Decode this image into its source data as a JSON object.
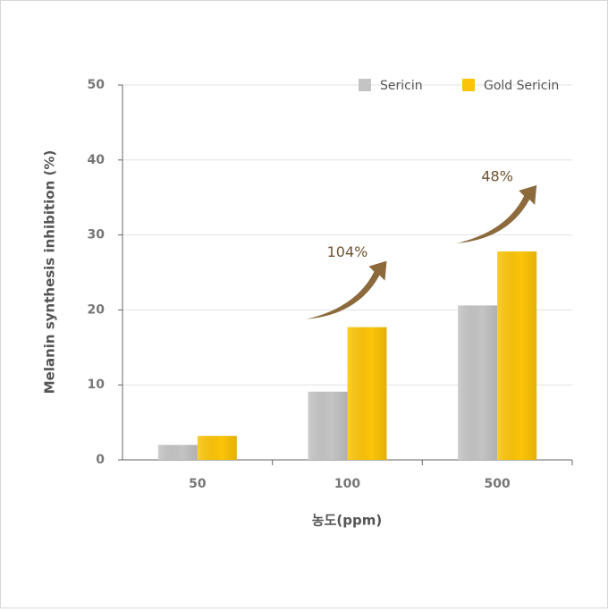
{
  "chart_data": {
    "type": "bar",
    "y_label": "Melanin synthesis inhibition (%)",
    "x_label": "농도(ppm)",
    "categories": [
      "50",
      "100",
      "500"
    ],
    "series": [
      {
        "name": "Sericin",
        "color": "#c4c4c4",
        "values": [
          2.0,
          9.1,
          20.6
        ]
      },
      {
        "name": "Gold Sericin",
        "color": "#fcc408",
        "values": [
          3.2,
          17.7,
          27.8
        ]
      }
    ],
    "annotations": [
      null,
      "104%",
      "48%"
    ],
    "ylim": [
      0,
      50
    ],
    "yticks": [
      0,
      10,
      20,
      30,
      40,
      50
    ],
    "grid": true,
    "legend": "top-right"
  }
}
